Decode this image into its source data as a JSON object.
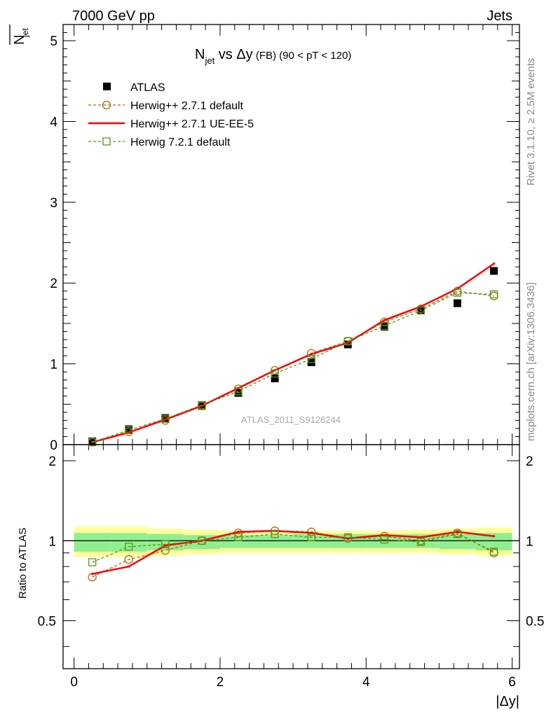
{
  "header": {
    "left": "7000 GeV pp",
    "right": "Jets"
  },
  "side_labels": {
    "rivet": "Rivet 3.1.10, ≥ 2.5M events",
    "mcplots": "mcplots.cern.ch [arXiv:1306.3436]"
  },
  "main_panel": {
    "ylabel": "N_jet (bar)",
    "ylabel_main": "N",
    "ylabel_sub": "jet",
    "title_main": "N",
    "title_sub": "jet",
    "title_rest": " vs Δy",
    "title_small": " (FB)",
    "title_range": " (90 < pT < 120)",
    "watermark": "ATLAS_2011_S9126244",
    "ylim": [
      0,
      5.2
    ],
    "yticks": [
      "0",
      "1",
      "2",
      "3",
      "4",
      "5"
    ]
  },
  "ratio_panel": {
    "ylabel": "Ratio to ATLAS",
    "yticks": [
      "0.5",
      "1",
      "2"
    ],
    "ylim": [
      0.33,
      2.3
    ]
  },
  "x_axis": {
    "label": "|Δy|",
    "xlim": [
      -0.15,
      6.1
    ],
    "ticks": [
      "0",
      "2",
      "4",
      "6"
    ]
  },
  "legend": {
    "atlas": "ATLAS",
    "h271def": "Herwig++ 2.7.1 default",
    "h271ue": "Herwig++ 2.7.1 UE-EE-5",
    "h721": "Herwig 7.2.1 default"
  },
  "colors": {
    "atlas": "#000000",
    "h271def": "#b5660d",
    "h271ue": "#ff0000",
    "h721": "#4d9a1a",
    "band_inner": "#90ee90",
    "band_outer": "#ffff99"
  },
  "chart_data": {
    "type": "line",
    "x": [
      0.25,
      0.75,
      1.25,
      1.75,
      2.25,
      2.75,
      3.25,
      3.75,
      4.25,
      4.75,
      5.25,
      5.75
    ],
    "bin_edges": [
      0,
      0.5,
      1,
      1.5,
      2,
      2.5,
      3,
      3.5,
      4,
      4.5,
      5,
      5.5,
      6
    ],
    "series": [
      {
        "name": "ATLAS",
        "values": [
          0.04,
          0.19,
          0.33,
          0.48,
          0.64,
          0.82,
          1.02,
          1.24,
          1.46,
          1.66,
          1.75,
          2.15
        ]
      },
      {
        "name": "Herwig++ 2.7.1 default",
        "values": [
          0.03,
          0.16,
          0.3,
          0.48,
          0.69,
          0.92,
          1.13,
          1.28,
          1.52,
          1.68,
          1.9,
          1.84
        ]
      },
      {
        "name": "Herwig++ 2.7.1 UE-EE-5",
        "values": [
          0.03,
          0.15,
          0.31,
          0.48,
          0.7,
          0.92,
          1.12,
          1.26,
          1.54,
          1.71,
          1.93,
          2.24
        ]
      },
      {
        "name": "Herwig 7.2.1 default",
        "values": [
          0.03,
          0.18,
          0.32,
          0.49,
          0.66,
          0.88,
          1.06,
          1.28,
          1.47,
          1.66,
          1.88,
          1.86
        ]
      }
    ],
    "ratio_series": [
      {
        "name": "Herwig++ 2.7.1 default",
        "values": [
          0.73,
          0.85,
          0.92,
          1.0,
          1.07,
          1.09,
          1.08,
          1.02,
          1.04,
          1.0,
          1.07,
          0.9
        ]
      },
      {
        "name": "Herwig++ 2.7.1 UE-EE-5",
        "values": [
          0.75,
          0.8,
          0.96,
          1.0,
          1.08,
          1.09,
          1.07,
          1.02,
          1.05,
          1.03,
          1.08,
          1.04
        ]
      },
      {
        "name": "Herwig 7.2.1 default",
        "values": [
          0.83,
          0.95,
          0.97,
          1.0,
          1.03,
          1.06,
          1.03,
          1.03,
          1.01,
          0.99,
          1.06,
          0.91
        ]
      }
    ],
    "band_inner": [
      [
        0.91,
        1.07
      ],
      [
        0.91,
        1.07
      ],
      [
        0.92,
        1.06
      ],
      [
        0.93,
        1.05
      ],
      [
        0.94,
        1.05
      ],
      [
        0.94,
        1.05
      ],
      [
        0.94,
        1.06
      ],
      [
        0.94,
        1.06
      ],
      [
        0.94,
        1.06
      ],
      [
        0.94,
        1.06
      ],
      [
        0.93,
        1.06
      ],
      [
        0.92,
        1.07
      ]
    ],
    "band_outer": [
      [
        0.87,
        1.13
      ],
      [
        0.87,
        1.13
      ],
      [
        0.88,
        1.11
      ],
      [
        0.89,
        1.1
      ],
      [
        0.9,
        1.09
      ],
      [
        0.9,
        1.09
      ],
      [
        0.9,
        1.09
      ],
      [
        0.9,
        1.09
      ],
      [
        0.9,
        1.09
      ],
      [
        0.9,
        1.1
      ],
      [
        0.89,
        1.11
      ],
      [
        0.88,
        1.12
      ]
    ],
    "xlabel": "|Δy|",
    "ylabel": "N_jet",
    "title": "N_jet vs Δy (FB) (90 < pT < 120)"
  }
}
